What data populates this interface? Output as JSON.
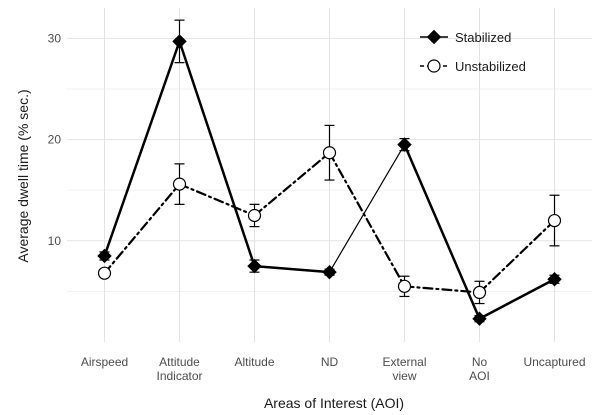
{
  "chart_data": {
    "type": "line",
    "categories": [
      [
        "Airspeed"
      ],
      [
        "Attitude",
        "Indicator"
      ],
      [
        "Altitude"
      ],
      [
        "ND"
      ],
      [
        "External",
        "view"
      ],
      [
        "No",
        "AOI"
      ],
      [
        "Uncaptured"
      ]
    ],
    "xlabel": "Areas of Interest (AOI)",
    "ylabel": "Average dwell time (% sec.)",
    "ylim": [
      0,
      33
    ],
    "yticks": [
      10,
      20,
      30
    ],
    "grid": true,
    "legend_position": "top-right",
    "series": [
      {
        "name": "Stabilized",
        "marker": "filled-diamond",
        "color": "#000000",
        "values": [
          8.5,
          29.7,
          7.5,
          6.9,
          19.5,
          2.3,
          6.2
        ],
        "error": [
          0.4,
          2.1,
          0.6,
          0.3,
          0.6,
          0.3,
          0.4
        ],
        "line_widths": [
          2.5,
          2.5,
          2.5,
          1.2,
          2.5,
          2.5
        ],
        "line_dashes": [
          "none",
          "none",
          "none",
          "none",
          "none",
          "none"
        ]
      },
      {
        "name": "Unstabilized",
        "marker": "open-circle",
        "color": "#000000",
        "values": [
          6.8,
          15.6,
          12.5,
          18.7,
          5.5,
          4.9,
          12.0
        ],
        "error": [
          0.3,
          2.0,
          1.1,
          2.7,
          1.0,
          1.1,
          2.5
        ],
        "line_widths": [
          2.2,
          2.2,
          2.2,
          2.2,
          2.2,
          2.2
        ],
        "line_dashes": [
          "dashdot",
          "dashdot",
          "dashdot",
          "dashdot",
          "dashdot",
          "dashdot"
        ]
      }
    ]
  }
}
